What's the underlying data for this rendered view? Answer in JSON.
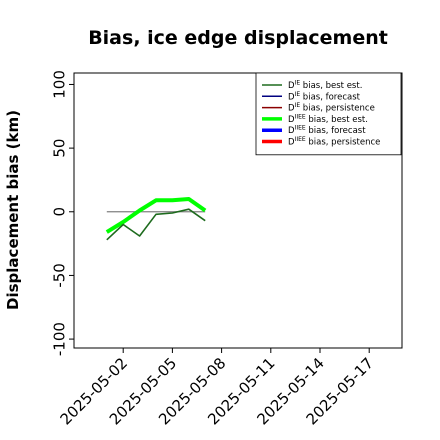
{
  "chart_data": {
    "type": "line",
    "title": "Bias, ice edge displacement",
    "xlabel": "",
    "ylabel": "Displacement bias (km)",
    "ylim": [
      -107,
      109
    ],
    "yticks": [
      -100,
      -50,
      0,
      50,
      100
    ],
    "xlim": [
      "2025-04-29",
      "2025-05-19"
    ],
    "xticks": [
      "2025-05-02",
      "2025-05-05",
      "2025-05-08",
      "2025-05-11",
      "2025-05-14",
      "2025-05-17"
    ],
    "highlight_tick": "2025-05-08",
    "highlight_color": "#228b22",
    "grid": false,
    "legend_position": "top-right",
    "series": [
      {
        "name": "D$^{IE}$ bias, best est.",
        "legend": [
          "D",
          "IE",
          " bias, best est."
        ],
        "color": "#1e6b1e",
        "width": 1.6,
        "x": [
          "2025-05-01",
          "2025-05-02",
          "2025-05-03",
          "2025-05-04",
          "2025-05-05",
          "2025-05-06",
          "2025-05-07"
        ],
        "y": [
          -22,
          -10,
          -19,
          -2,
          -1,
          2,
          -7
        ]
      },
      {
        "name": "D$^{IE}$ bias, forecast",
        "legend": [
          "D",
          "IE",
          " bias, forecast"
        ],
        "color": "#000080",
        "width": 1.6,
        "x": [],
        "y": []
      },
      {
        "name": "D$^{IE}$ bias, persistence",
        "legend": [
          "D",
          "IE",
          " bias, persistence"
        ],
        "color": "#8b0000",
        "width": 1.6,
        "x": [],
        "y": []
      },
      {
        "name": "D$^{IIEE}$ bias, best est.",
        "legend": [
          "D",
          "IIEE",
          " bias, best est."
        ],
        "color": "#00ff00",
        "width": 4,
        "x": [
          "2025-05-01",
          "2025-05-02",
          "2025-05-03",
          "2025-05-04",
          "2025-05-05",
          "2025-05-06",
          "2025-05-07"
        ],
        "y": [
          -16,
          -8,
          1,
          9,
          9,
          10,
          1
        ]
      },
      {
        "name": "D$^{IIEE}$ bias, forecast",
        "legend": [
          "D",
          "IIEE",
          " bias, forecast"
        ],
        "color": "#0000ff",
        "width": 4,
        "x": [],
        "y": []
      },
      {
        "name": "D$^{IIEE}$ bias, persistence",
        "legend": [
          "D",
          "IIEE",
          " bias, persistence"
        ],
        "color": "#ff0000",
        "width": 4,
        "x": [],
        "y": []
      }
    ],
    "reference_line": {
      "color": "#808080",
      "x": [
        "2025-05-01",
        "2025-05-07"
      ],
      "y": [
        0,
        0
      ]
    }
  }
}
